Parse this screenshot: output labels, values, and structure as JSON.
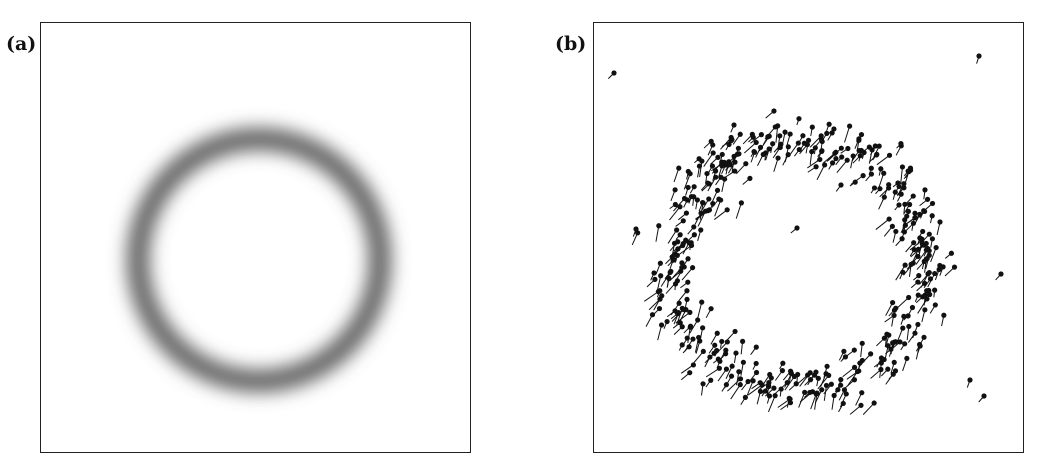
{
  "panels": [
    {
      "id": "a",
      "label": "(a)",
      "kind": "blurred-ring-density",
      "color": "#5f5f5f"
    },
    {
      "id": "b",
      "label": "(b)",
      "kind": "particle-ring-with-velocity-tails",
      "color": "#111111"
    }
  ]
}
